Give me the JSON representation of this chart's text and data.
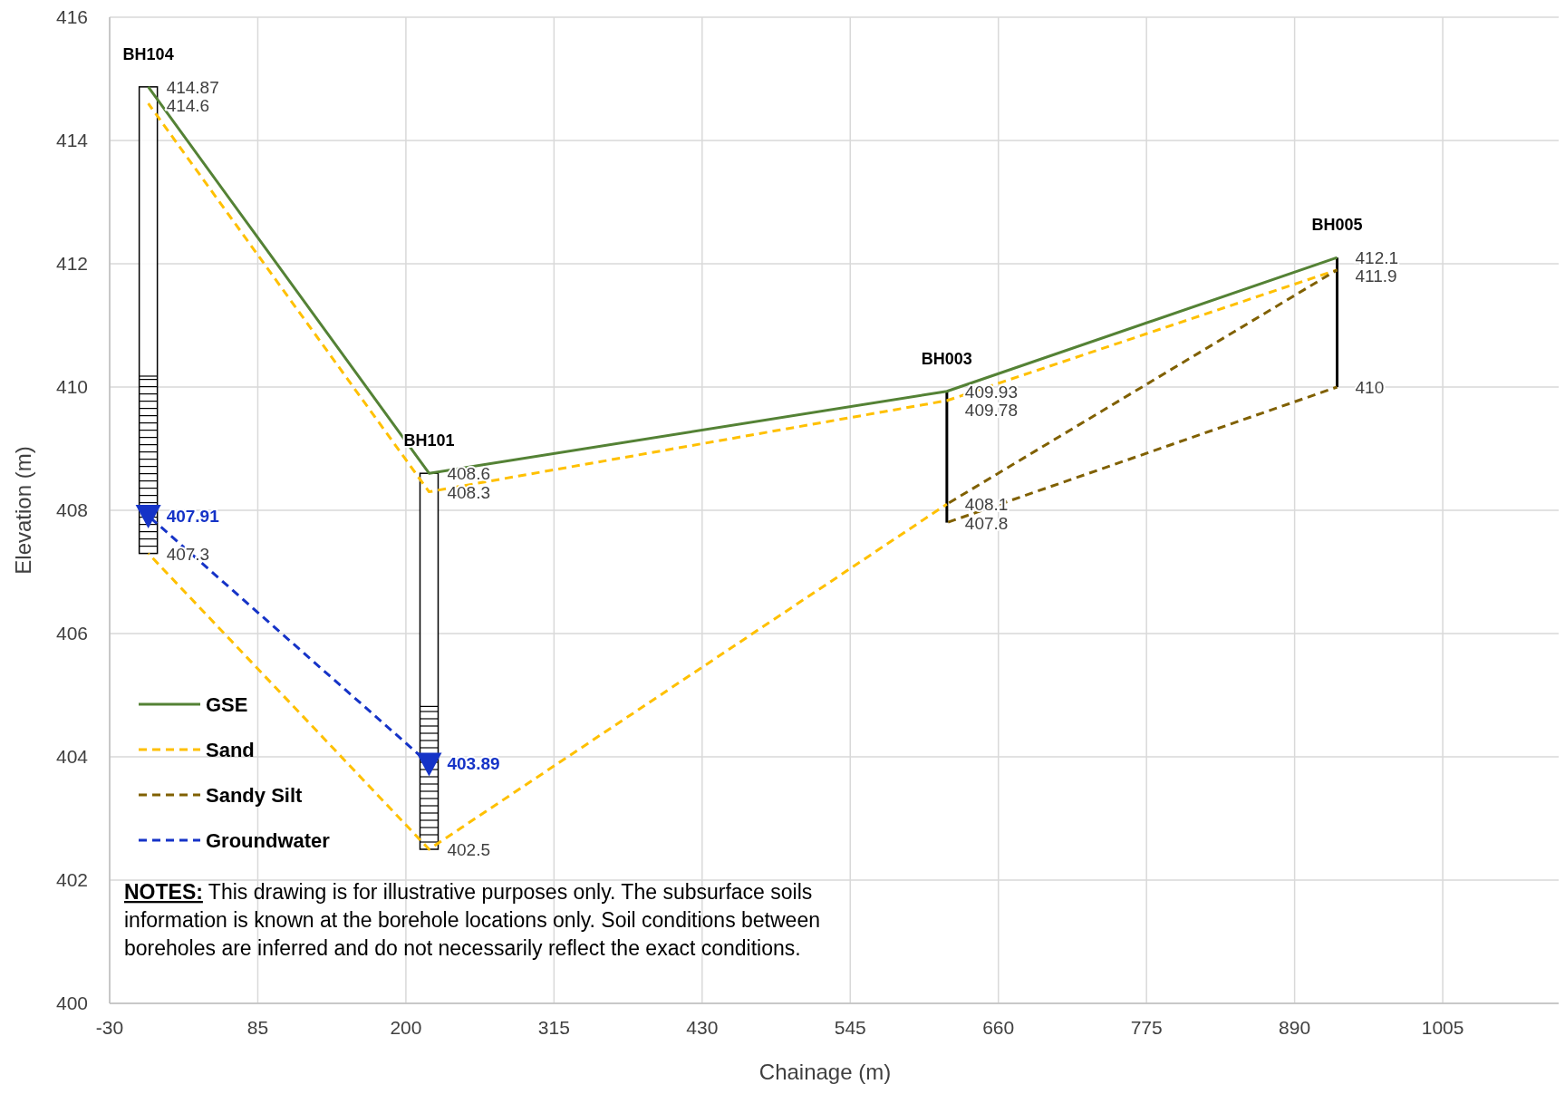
{
  "chart_data": {
    "type": "line",
    "xlabel": "Chainage (m)",
    "ylabel": "Elevation (m)",
    "xlim": [
      -30,
      1095
    ],
    "xticks": [
      -30,
      85,
      200,
      315,
      430,
      545,
      660,
      775,
      890,
      1005
    ],
    "ylim": [
      400,
      416
    ],
    "yticks": [
      400,
      402,
      404,
      406,
      408,
      410,
      412,
      414,
      416
    ],
    "grid": true,
    "legend": "bottom left",
    "series": [
      {
        "name": "GSE",
        "color": "#548235",
        "line_style": "solid",
        "marker": "none",
        "x": [
          0,
          218,
          620,
          923
        ],
        "values": [
          414.87,
          408.6,
          409.93,
          412.1
        ],
        "value_labels": [
          "414.87",
          "408.6",
          "409.93",
          "412.1"
        ]
      },
      {
        "name": "Sand",
        "color": "#ffc000",
        "line_style": "dashed",
        "marker": "none",
        "x": [
          0,
          218,
          620,
          923
        ],
        "values": [
          414.6,
          408.3,
          409.78,
          411.9
        ],
        "value_labels": [
          "414.6",
          "408.3",
          "409.78",
          "411.9"
        ]
      },
      {
        "color": "#ffc000",
        "line_style": "dashed",
        "marker": "none",
        "x": [
          0,
          218,
          620
        ],
        "values": [
          407.3,
          402.5,
          408.1
        ],
        "value_labels": [
          "407.3",
          "402.5",
          "408.1"
        ]
      },
      {
        "name": "Sandy Silt",
        "color": "#806000",
        "line_style": "dashed",
        "marker": "none",
        "x": [
          620,
          923
        ],
        "values": [
          408.1,
          411.9
        ],
        "value_labels": [
          null,
          null
        ]
      },
      {
        "color": "#806000",
        "line_style": "dashed",
        "marker": "none",
        "x": [
          620,
          923
        ],
        "values": [
          407.8,
          410
        ],
        "value_labels": [
          "407.8",
          "410"
        ]
      },
      {
        "name": "Groundwater",
        "color": "#1533c7",
        "line_style": "dashed",
        "marker": "triangle",
        "x": [
          0,
          218
        ],
        "values": [
          407.91,
          403.89
        ],
        "value_labels": [
          "407.91",
          "403.89"
        ]
      }
    ],
    "annotations": [
      {
        "text": "BH104",
        "x": 0,
        "y": 414.87
      },
      {
        "text": "BH101",
        "x": 218,
        "y": 408.6
      },
      {
        "text": "BH003",
        "x": 620,
        "y": 409.93
      },
      {
        "text": "BH005",
        "x": 923,
        "y": 412.1
      },
      "NOTES: This drawing is for illustrative purposes only.  The subsurface soils information is known at the borehole locations only.  Soil conditions between boreholes are inferred and do not necessarily reflect the exact conditions."
    ]
  }
}
